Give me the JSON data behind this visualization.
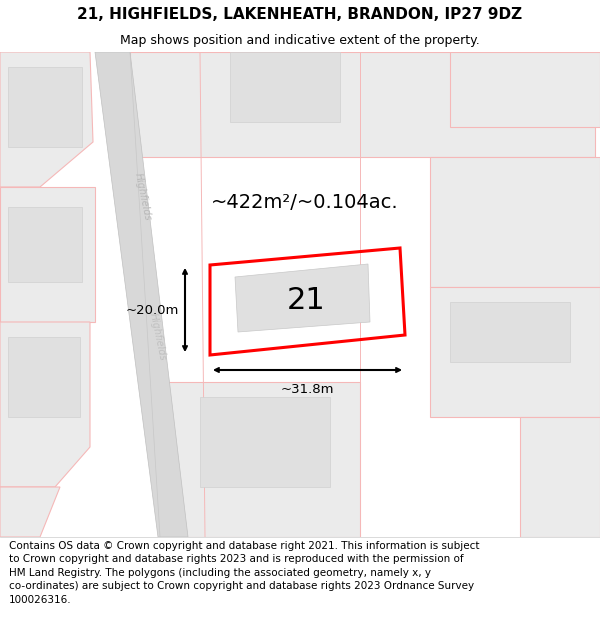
{
  "title": "21, HIGHFIELDS, LAKENHEATH, BRANDON, IP27 9DZ",
  "subtitle": "Map shows position and indicative extent of the property.",
  "footer": "Contains OS data © Crown copyright and database right 2021. This information is subject\nto Crown copyright and database rights 2023 and is reproduced with the permission of\nHM Land Registry. The polygons (including the associated geometry, namely x, y\nco-ordinates) are subject to Crown copyright and database rights 2023 Ordnance Survey\n100026316.",
  "area_label": "~422m²/~0.104ac.",
  "number_label": "21",
  "dim_width_label": "~31.8m",
  "dim_height_label": "~20.0m",
  "light_pink": "#f5b8b8",
  "red_plot": "#ff0000",
  "road_fill": "#d8d8d8",
  "road_edge": "#c0c0c0",
  "block_fill": "#ebebeb",
  "building_fill": "#e0e0e0",
  "map_bg": "#f5f5f5",
  "white": "#ffffff",
  "title_fontsize": 11,
  "subtitle_fontsize": 9,
  "footer_fontsize": 7.5,
  "area_fontsize": 14,
  "number_fontsize": 22
}
